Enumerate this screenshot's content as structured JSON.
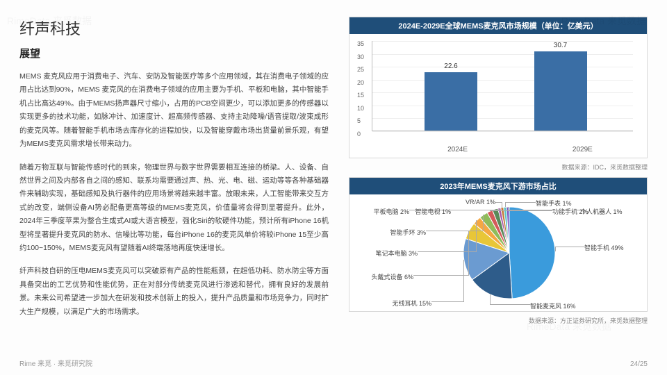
{
  "header": {
    "company": "纤声科技",
    "section": "展望"
  },
  "paragraphs": {
    "p1": "MEMS 麦克风应用于消费电子、汽车、安防及智能医疗等多个应用领域，其在消费电子领域的应用占比达到90%，MEMS 麦克风的在消费电子领域的应用主要为手机、平板和电脑，其中智能手机占比高达49%。由于MEMS扬声器尺寸缩小，占用的PCB空间更少，可以添加更多的传感器以实现更多的技术功能，如脉冲计、加速度计、超高频传感器、支持主动降噪/语音提取/波束成形的麦克风等。随着智能手机市场去库存化的进程加快，以及智能穿戴市场出货量前景乐观，有望为MEMS麦克风需求增长带来动力。",
    "p2": "随着万物互联与智能传感时代的到来，物理世界与数字世界需要相互连接的桥梁。人、设备、自然世界之间及内部各自之间的感知、联系均需要通过声、热、光、电、磁、运动等等各种基础器件来辅助实现，基础感知及执行器件的应用场景将越来越丰富。放眼未来，人工智能带来交互方式的改变，端侧设备AI势必配备更高等级的MEMS麦克风，价值量将会得到显著提升。此外，2024年三季度苹果为整合生成式AI或大语言模型，强化Siri的软硬件功能，预计所有iPhone 16机型将显著提升麦克风的防水、信噪比等功能，每台iPhone 16的麦克风单价将较iPhone 15至少高约100~150%，MEMS麦克风有望随着AI终端落地再度快速增长。",
    "p3": "纤声科技自研的压电MEMS麦克风可以突破原有产品的性能瓶颈，在超低功耗、防水防尘等方面具备突出的工艺优势和性能优势，正在对部分传统麦克风进行渗透和替代，拥有良好的发展前景。未来公司希望进一步加大在研发和技术创新上的投入，提升产品质量和市场竞争力，同时扩大生产规模，以满足广大的市场需求。"
  },
  "bar_chart": {
    "title": "2024E-2029E全球MEMS麦克风市场规模（单位：亿美元）",
    "ymax": 35,
    "ytick_step": 5,
    "bar_color": "#3a6ea5",
    "bars": [
      {
        "label": "2024E",
        "value": 22.6,
        "x_pct": 20
      },
      {
        "label": "2029E",
        "value": 30.7,
        "x_pct": 62
      }
    ],
    "source": "数据来源：IDC，来觅数据整理"
  },
  "pie_chart": {
    "title": "2023年MEMS麦克风下游市场占比",
    "slices": [
      {
        "name": "智能手机",
        "pct": 49,
        "color": "#3a9bdc"
      },
      {
        "name": "智能麦克风",
        "pct": 16,
        "color": "#2e5c8a"
      },
      {
        "name": "无线耳机",
        "pct": 15,
        "color": "#6b9bd1"
      },
      {
        "name": "头戴式设备",
        "pct": 6,
        "color": "#e8c637"
      },
      {
        "name": "笔记本电脑",
        "pct": 3,
        "color": "#f4a742"
      },
      {
        "name": "智能手环",
        "pct": 3,
        "color": "#8fbc5a"
      },
      {
        "name": "功能手机",
        "pct": 2,
        "color": "#d45a5a"
      },
      {
        "name": "平板电脑",
        "pct": 2,
        "color": "#5a8a5a"
      },
      {
        "name": "智能电视",
        "pct": 1,
        "color": "#a85aa8"
      },
      {
        "name": "VR/AR",
        "pct": 1,
        "color": "#c47a3a"
      },
      {
        "name": "智能手表",
        "pct": 1,
        "color": "#5ac4c4"
      },
      {
        "name": "个人机器人",
        "pct": 1,
        "color": "#7a5ac4"
      }
    ],
    "source": "数据来源：方正证券研究所，来觅数据整理"
  },
  "footer": {
    "org": "Rime 来觅 · 来觅研究院",
    "page": "24/25"
  }
}
